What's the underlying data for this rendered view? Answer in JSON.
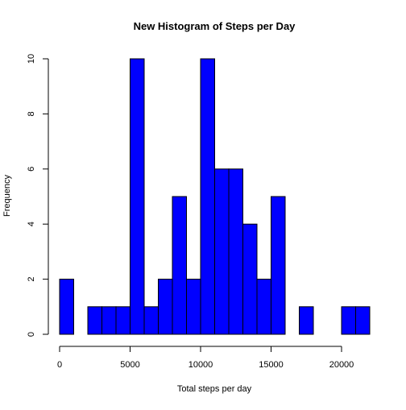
{
  "chart_data": {
    "type": "bar",
    "title": "New Histogram of Steps per Day",
    "xlabel": "Total steps per day",
    "ylabel": "Frequency",
    "bar_color": "#0000FF",
    "bar_edge_color": "#000000",
    "bin_width": 1000,
    "xlim": [
      0,
      22000
    ],
    "ylim": [
      0,
      10
    ],
    "x_ticks": [
      0,
      5000,
      10000,
      15000,
      20000
    ],
    "y_ticks": [
      0,
      2,
      4,
      6,
      8,
      10
    ],
    "x_tick_labels": [
      "0",
      "5000",
      "10000",
      "15000",
      "20000"
    ],
    "y_tick_labels": [
      "0",
      "2",
      "4",
      "6",
      "8",
      "10"
    ],
    "bins": [
      {
        "start": 0,
        "end": 1000,
        "count": 2
      },
      {
        "start": 1000,
        "end": 2000,
        "count": 0
      },
      {
        "start": 2000,
        "end": 3000,
        "count": 1
      },
      {
        "start": 3000,
        "end": 4000,
        "count": 1
      },
      {
        "start": 4000,
        "end": 5000,
        "count": 1
      },
      {
        "start": 5000,
        "end": 6000,
        "count": 10
      },
      {
        "start": 6000,
        "end": 7000,
        "count": 1
      },
      {
        "start": 7000,
        "end": 8000,
        "count": 2
      },
      {
        "start": 8000,
        "end": 9000,
        "count": 5
      },
      {
        "start": 9000,
        "end": 10000,
        "count": 2
      },
      {
        "start": 10000,
        "end": 11000,
        "count": 10
      },
      {
        "start": 11000,
        "end": 12000,
        "count": 6
      },
      {
        "start": 12000,
        "end": 13000,
        "count": 6
      },
      {
        "start": 13000,
        "end": 14000,
        "count": 4
      },
      {
        "start": 14000,
        "end": 15000,
        "count": 2
      },
      {
        "start": 15000,
        "end": 16000,
        "count": 5
      },
      {
        "start": 16000,
        "end": 17000,
        "count": 0
      },
      {
        "start": 17000,
        "end": 18000,
        "count": 1
      },
      {
        "start": 18000,
        "end": 19000,
        "count": 0
      },
      {
        "start": 19000,
        "end": 20000,
        "count": 0
      },
      {
        "start": 20000,
        "end": 21000,
        "count": 1
      },
      {
        "start": 21000,
        "end": 22000,
        "count": 1
      }
    ]
  }
}
